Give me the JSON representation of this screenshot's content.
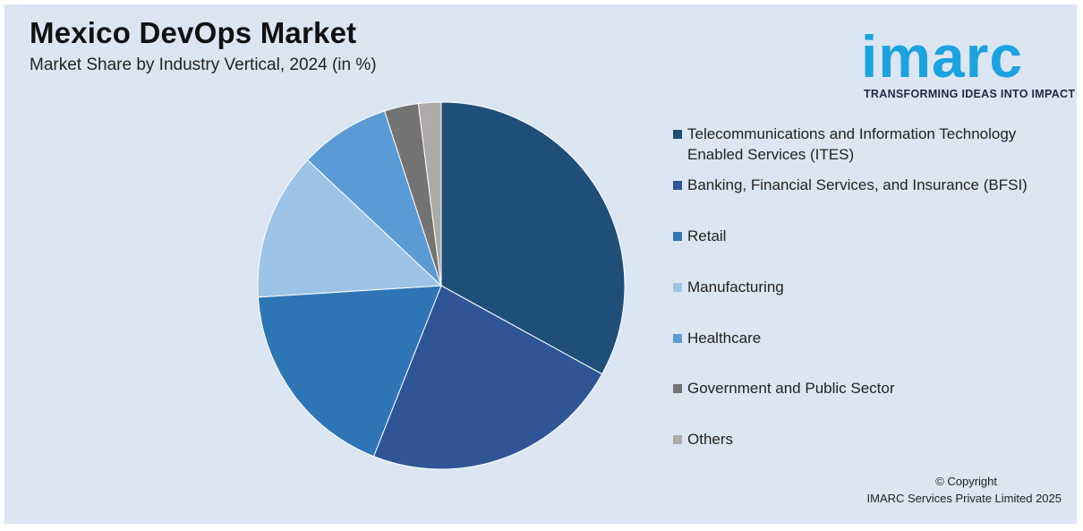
{
  "header": {
    "title": "Mexico DevOps Market",
    "subtitle": "Market Share by Industry Vertical, 2024 (in %)"
  },
  "logo": {
    "word": "imarc",
    "tagline": "TRANSFORMING IDEAS INTO IMPACT",
    "color": "#1aa3e0"
  },
  "footer": {
    "copyright_line1": "© Copyright",
    "copyright_line2": "IMARC Services Private Limited 2025"
  },
  "chart_data": {
    "type": "pie",
    "title": "Mexico DevOps Market",
    "subtitle": "Market Share by Industry Vertical, 2024 (in %)",
    "legend_position": "right",
    "start_angle": "12 o'clock, clockwise",
    "slices": [
      {
        "label": "Telecommunications and Information Technology Enabled Services (ITES)",
        "legend_lines": [
          "Telecommunications and Information Technology",
          "Enabled Services (ITES)"
        ],
        "value": 33,
        "color": "#1f4e79"
      },
      {
        "label": "Banking, Financial Services, and Insurance (BFSI)",
        "legend_lines": [
          "Banking, Financial Services, and Insurance (BFSI)"
        ],
        "value": 23,
        "color": "#2f5597"
      },
      {
        "label": "Retail",
        "legend_lines": [
          "Retail"
        ],
        "value": 18,
        "color": "#2e75b6"
      },
      {
        "label": "Manufacturing",
        "legend_lines": [
          "Manufacturing"
        ],
        "value": 13,
        "color": "#9dc3e6"
      },
      {
        "label": "Healthcare",
        "legend_lines": [
          "Healthcare"
        ],
        "value": 8,
        "color": "#5b9bd5"
      },
      {
        "label": "Government and Public Sector",
        "legend_lines": [
          "Government and Public Sector"
        ],
        "value": 3,
        "color": "#737373"
      },
      {
        "label": "Others",
        "legend_lines": [
          "Others"
        ],
        "value": 2,
        "color": "#aeaaaa"
      }
    ]
  }
}
